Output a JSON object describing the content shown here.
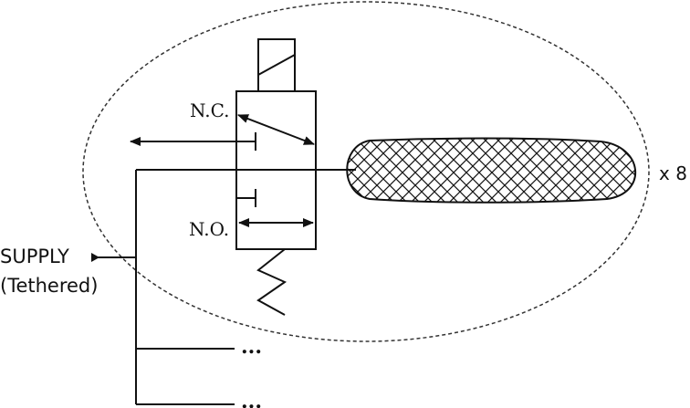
{
  "labels": {
    "normally_closed": "N.C.",
    "normally_open": "N.O.",
    "supply": "SUPPLY",
    "supply_note": "(Tethered)",
    "multiplier": "x 8",
    "continuation_1": "...",
    "continuation_2": "..."
  },
  "colors": {
    "stroke": "#111111",
    "boundary": "#333333",
    "background": "#ffffff"
  },
  "icons": {
    "solenoid": "solenoid-coil-icon",
    "spring": "return-spring-icon",
    "actuator": "hatched-actuator-icon"
  }
}
